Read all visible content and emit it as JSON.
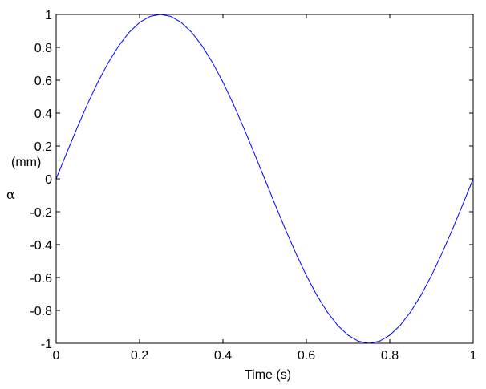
{
  "chart_data": {
    "type": "line",
    "title": "",
    "xlabel": "Time (s)",
    "ylabel_unit": "(mm)",
    "ylabel_symbol": "α",
    "xlim": [
      0,
      1
    ],
    "ylim": [
      -1,
      1
    ],
    "xticks": [
      0,
      0.2,
      0.4,
      0.6,
      0.8,
      1
    ],
    "xtick_labels": [
      "0",
      "0.2",
      "0.4",
      "0.6",
      "0.8",
      "1"
    ],
    "yticks": [
      -1,
      -0.8,
      -0.6,
      -0.4,
      -0.2,
      0,
      0.2,
      0.4,
      0.6,
      0.8,
      1
    ],
    "ytick_labels": [
      "-1",
      "-0.8",
      "-0.6",
      "-0.4",
      "-0.2",
      "0",
      "0.2",
      "0.4",
      "0.6",
      "0.8",
      "1"
    ],
    "grid": false,
    "line_color": "#0000ff",
    "series": [
      {
        "x": [
          0,
          0.025,
          0.05,
          0.075,
          0.1,
          0.125,
          0.15,
          0.175,
          0.2,
          0.225,
          0.25,
          0.275,
          0.3,
          0.325,
          0.35,
          0.375,
          0.4,
          0.425,
          0.45,
          0.475,
          0.5,
          0.525,
          0.55,
          0.575,
          0.6,
          0.625,
          0.65,
          0.675,
          0.7,
          0.725,
          0.75,
          0.775,
          0.8,
          0.825,
          0.85,
          0.875,
          0.9,
          0.925,
          0.95,
          0.975,
          1
        ],
        "values": [
          0,
          0.156,
          0.309,
          0.454,
          0.588,
          0.707,
          0.809,
          0.891,
          0.951,
          0.988,
          1,
          0.988,
          0.951,
          0.891,
          0.809,
          0.707,
          0.588,
          0.454,
          0.309,
          0.156,
          0,
          -0.156,
          -0.309,
          -0.454,
          -0.588,
          -0.707,
          -0.809,
          -0.891,
          -0.951,
          -0.988,
          -1,
          -0.988,
          -0.951,
          -0.891,
          -0.809,
          -0.707,
          -0.588,
          -0.454,
          -0.309,
          -0.156,
          0
        ]
      }
    ]
  }
}
